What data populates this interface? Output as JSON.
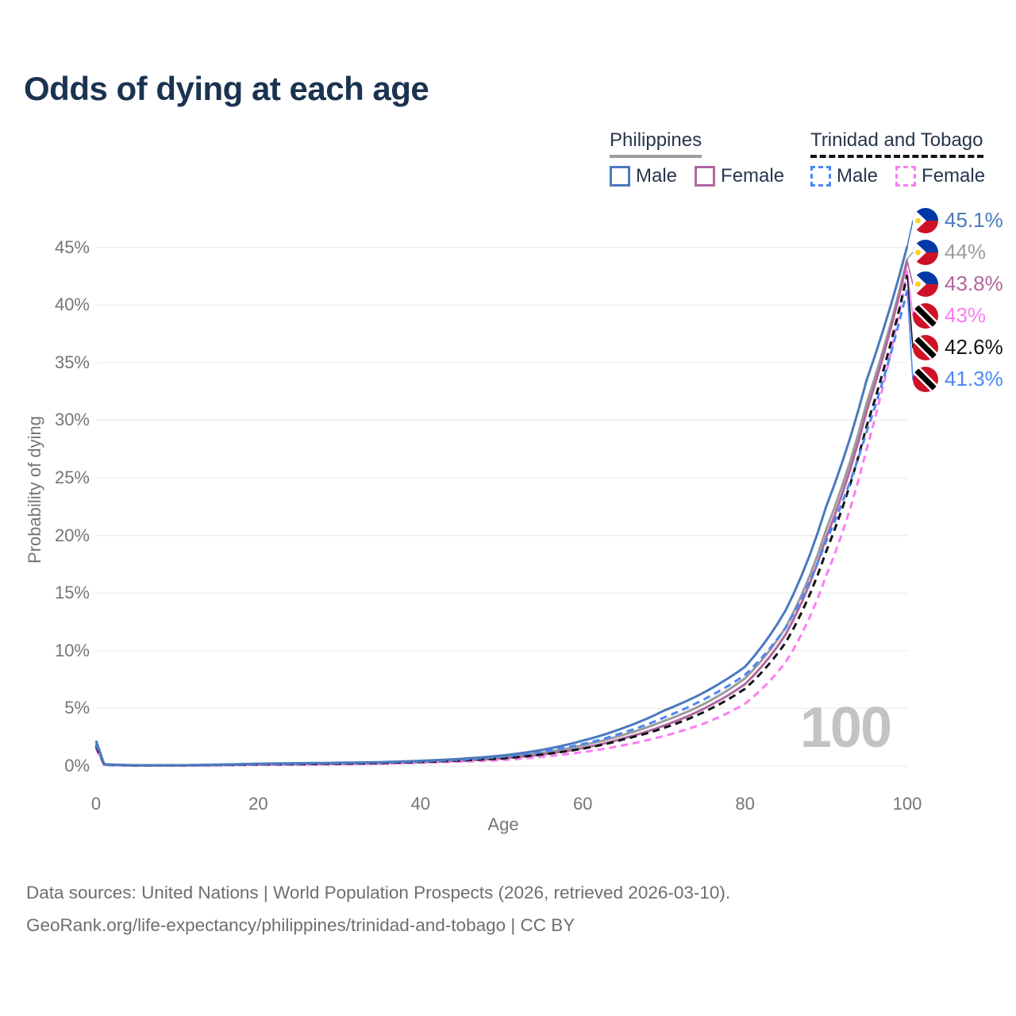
{
  "title": "Odds of dying at each age",
  "watermark": "100",
  "legend": {
    "groups": [
      {
        "label": "Philippines",
        "line_style": "solid",
        "underline_color": "#9e9e9e",
        "items": [
          {
            "label": "Male",
            "color": "#4a79bd"
          },
          {
            "label": "Female",
            "color": "#b0679f"
          }
        ]
      },
      {
        "label": "Trinidad and Tobago",
        "line_style": "dashed",
        "underline_color": "#141414",
        "items": [
          {
            "label": "Male",
            "color": "#4d87f2"
          },
          {
            "label": "Female",
            "color": "#fb7df2"
          }
        ]
      }
    ]
  },
  "chart_data": {
    "type": "line",
    "title": "Odds of dying at each age",
    "xlabel": "Age",
    "ylabel": "Probability of dying",
    "xlim": [
      0,
      100
    ],
    "ylim_pct": [
      0,
      47
    ],
    "x_ticks": [
      0,
      20,
      40,
      60,
      80,
      100
    ],
    "y_ticks_pct": [
      0,
      5,
      10,
      15,
      20,
      25,
      30,
      35,
      40,
      45
    ],
    "grid": true,
    "legend_position": "top-right",
    "ages": [
      0,
      1,
      5,
      10,
      15,
      20,
      25,
      30,
      35,
      40,
      45,
      50,
      55,
      60,
      65,
      70,
      75,
      80,
      85,
      90,
      95,
      100
    ],
    "series": [
      {
        "name": "Philippines Male",
        "flag": "ph",
        "style": "solid",
        "color": "#4a79bd",
        "end_label": "45.1%",
        "values_pct": [
          2.2,
          0.15,
          0.06,
          0.06,
          0.12,
          0.2,
          0.24,
          0.28,
          0.33,
          0.45,
          0.62,
          0.9,
          1.4,
          2.2,
          3.3,
          4.8,
          6.4,
          8.6,
          13.5,
          22.5,
          33.5,
          45.1
        ]
      },
      {
        "name": "Philippines",
        "flag": "ph",
        "style": "solid",
        "color": "#9c9c9c",
        "end_label": "44%",
        "values_pct": [
          2.0,
          0.13,
          0.05,
          0.05,
          0.1,
          0.16,
          0.19,
          0.22,
          0.27,
          0.4,
          0.55,
          0.75,
          1.15,
          1.8,
          2.7,
          3.9,
          5.4,
          7.6,
          12.0,
          20.5,
          31.5,
          44.0
        ]
      },
      {
        "name": "Philippines Female",
        "flag": "ph",
        "style": "solid",
        "color": "#b0679f",
        "end_label": "43.8%",
        "values_pct": [
          1.8,
          0.11,
          0.04,
          0.04,
          0.07,
          0.12,
          0.14,
          0.17,
          0.21,
          0.33,
          0.45,
          0.65,
          1.0,
          1.55,
          2.4,
          3.5,
          5.0,
          7.1,
          11.4,
          19.8,
          30.8,
          43.8
        ]
      },
      {
        "name": "Trinidad and Tobago Female",
        "flag": "tt",
        "style": "dashed",
        "color": "#fb7df2",
        "end_label": "43%",
        "values_pct": [
          1.5,
          0.1,
          0.04,
          0.04,
          0.06,
          0.1,
          0.12,
          0.15,
          0.19,
          0.28,
          0.38,
          0.5,
          0.8,
          1.2,
          1.8,
          2.6,
          3.7,
          5.4,
          9.0,
          16.5,
          27.5,
          43.0
        ]
      },
      {
        "name": "Trinidad and Tobago",
        "flag": "tt",
        "style": "dashed",
        "color": "#141414",
        "end_label": "42.6%",
        "values_pct": [
          1.7,
          0.11,
          0.04,
          0.05,
          0.08,
          0.13,
          0.16,
          0.2,
          0.25,
          0.35,
          0.48,
          0.65,
          1.0,
          1.5,
          2.3,
          3.3,
          4.7,
          6.7,
          10.7,
          18.6,
          29.5,
          42.6
        ]
      },
      {
        "name": "Trinidad and Tobago Male",
        "flag": "tt",
        "style": "dashed",
        "color": "#4d87f2",
        "end_label": "41.3%",
        "values_pct": [
          1.9,
          0.12,
          0.05,
          0.06,
          0.1,
          0.15,
          0.2,
          0.25,
          0.3,
          0.4,
          0.55,
          0.8,
          1.25,
          1.9,
          2.9,
          4.2,
          5.8,
          7.9,
          12.0,
          19.5,
          29.0,
          41.3
        ]
      }
    ]
  },
  "footer": {
    "line1": "Data sources: United Nations | World Population Prospects (2026, retrieved 2026-03-10).",
    "line2": "GeoRank.org/life-expectancy/philippines/trinidad-and-tobago | CC BY"
  }
}
